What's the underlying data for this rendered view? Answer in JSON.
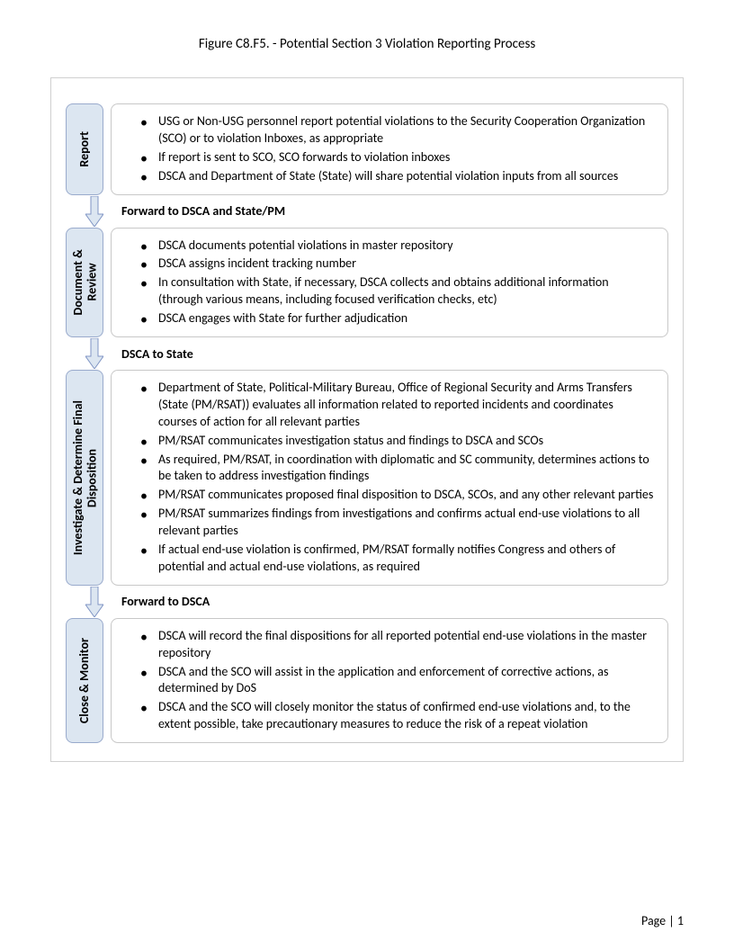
{
  "title": "Figure C8.F5. - Potential Section 3 Violation Reporting Process",
  "stages": [
    {
      "label": "Report",
      "bullets": [
        "USG or Non-USG personnel report potential violations to the Security Cooperation Organization (SCO) or to violation Inboxes, as appropriate",
        "If report is sent to SCO, SCO forwards to violation inboxes",
        "DSCA and Department of State (State) will share potential violation inputs from all sources"
      ],
      "connector": "Forward to DSCA and State/PM"
    },
    {
      "label": "Document & Review",
      "bullets": [
        "DSCA documents potential violations in master repository",
        "DSCA assigns incident tracking number",
        "In consultation with State, if necessary, DSCA collects and obtains additional information (through various means, including focused verification checks, etc)",
        "DSCA engages with State for further adjudication"
      ],
      "connector": "DSCA to State"
    },
    {
      "label": "Investigate & Determine Final Disposition",
      "bullets": [
        "Department of State, Political-Military Bureau, Office of Regional Security and Arms Transfers (State (PM/RSAT)) evaluates all information related to reported incidents and coordinates courses of action for all relevant parties",
        "PM/RSAT communicates investigation status and findings to DSCA and SCOs",
        "As required, PM/RSAT, in coordination with diplomatic and SC community, determines actions to be taken to address investigation findings",
        "PM/RSAT communicates proposed final disposition to DSCA, SCOs, and any other relevant parties",
        "PM/RSAT summarizes findings from investigations and confirms actual end-use violations to all relevant parties",
        "If actual end-use violation is confirmed, PM/RSAT formally notifies Congress and others of potential and actual end-use violations, as required"
      ],
      "connector": "Forward to DSCA"
    },
    {
      "label": "Close & Monitor",
      "bullets": [
        "DSCA will record the final dispositions for all reported potential end-use violations in the master repository",
        "DSCA and the SCO will assist in the application and enforcement of corrective actions, as determined by DoS",
        "DSCA and the SCO will closely monitor the status of confirmed end-use violations and, to the extent possible, take precautionary measures to reduce the risk of a repeat violation"
      ],
      "connector": null
    }
  ],
  "footer": "Page | 1",
  "colors": {
    "stage_bg": "#dce6f1",
    "stage_border": "#99aacc",
    "content_border": "#c8c8c8",
    "outer_border": "#d0d0d0",
    "arrow_fill": "#dce6f1",
    "arrow_stroke": "#7f94c4"
  }
}
